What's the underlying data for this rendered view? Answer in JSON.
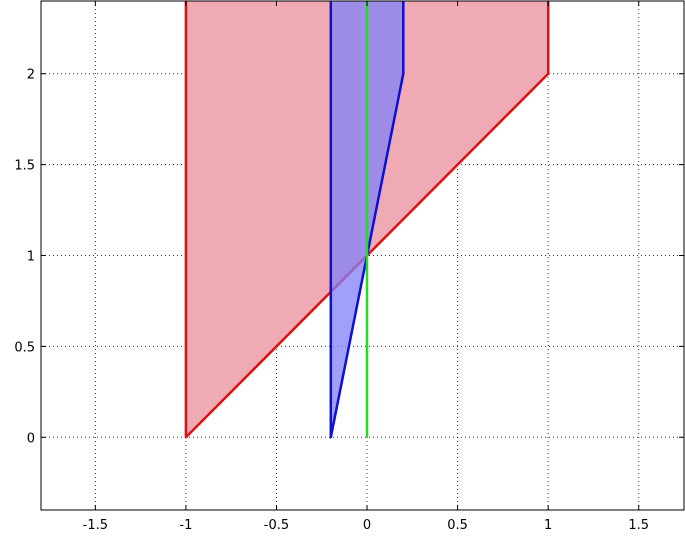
{
  "chart_data": {
    "type": "area",
    "title": "",
    "xlabel": "",
    "ylabel": "",
    "xlim": [
      -1.8,
      1.75
    ],
    "ylim": [
      -0.4,
      2.4
    ],
    "x_ticks": [
      -1.5,
      -1,
      -0.5,
      0,
      0.5,
      1,
      1.5
    ],
    "y_ticks": [
      0,
      0.5,
      1,
      1.5,
      2
    ],
    "x_tick_labels": [
      "-1.5",
      "-1",
      "-0.5",
      "0",
      "0.5",
      "1",
      "1.5"
    ],
    "y_tick_labels": [
      "0",
      "0.5",
      "1",
      "1.5",
      "2"
    ],
    "grid": true,
    "legend": "none",
    "series": [
      {
        "kind": "filled-polygon",
        "fill_color": "#f0aab4",
        "edge_color": "#dd1111",
        "points": [
          [
            -1,
            2.4
          ],
          [
            -1,
            0
          ],
          [
            1,
            2
          ],
          [
            1,
            2.4
          ]
        ]
      },
      {
        "kind": "filled-polygon",
        "fill_color": "#8080f8",
        "fill_opacity": 0.75,
        "edge_color": "#1010cc",
        "points": [
          [
            -0.2,
            2.4
          ],
          [
            -0.2,
            0
          ],
          [
            0.2,
            2
          ],
          [
            0.2,
            2.4
          ]
        ]
      },
      {
        "kind": "line",
        "color": "#22dd22",
        "points": [
          [
            0,
            0
          ],
          [
            0,
            2.4
          ]
        ]
      }
    ]
  }
}
